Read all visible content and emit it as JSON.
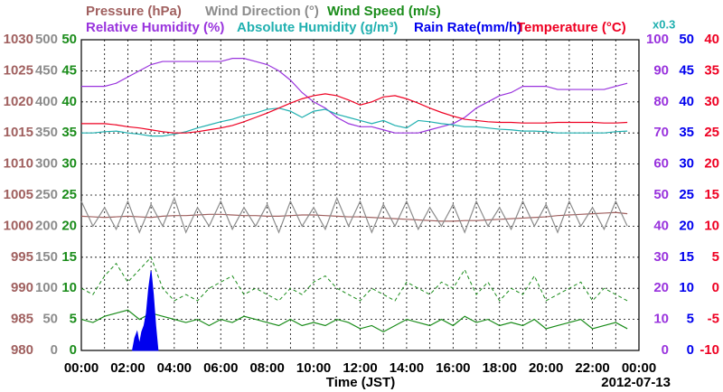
{
  "chart_data": {
    "type": "line",
    "x_label": "Time (JST)",
    "date_label": "2012-07-13",
    "scale_note": "x0.3",
    "xlim": [
      0,
      24
    ],
    "xticks": [
      {
        "value": 0,
        "label": "00:00"
      },
      {
        "value": 2,
        "label": "02:00"
      },
      {
        "value": 4,
        "label": "04:00"
      },
      {
        "value": 6,
        "label": "06:00"
      },
      {
        "value": 8,
        "label": "08:00"
      },
      {
        "value": 10,
        "label": "10:00"
      },
      {
        "value": 12,
        "label": "12:00"
      },
      {
        "value": 14,
        "label": "14:00"
      },
      {
        "value": 16,
        "label": "16:00"
      },
      {
        "value": 18,
        "label": "18:00"
      },
      {
        "value": 20,
        "label": "20:00"
      },
      {
        "value": 22,
        "label": "22:00"
      },
      {
        "value": 24,
        "label": "00:00"
      }
    ],
    "xminorticks": [
      1,
      3,
      5,
      7,
      9,
      11,
      13,
      15,
      17,
      19,
      21,
      23
    ],
    "grid": true,
    "axes": [
      {
        "side": "left",
        "color": "#a0605f",
        "lim": [
          980,
          1030
        ],
        "ticks": [
          980,
          985,
          990,
          995,
          1000,
          1005,
          1010,
          1015,
          1020,
          1025,
          1030
        ]
      },
      {
        "side": "left",
        "color": "#8c8c8c",
        "lim": [
          0,
          500
        ],
        "ticks": [
          0,
          50,
          100,
          150,
          200,
          250,
          300,
          350,
          400,
          450,
          500
        ]
      },
      {
        "side": "left",
        "color": "#1a8c1a",
        "lim": [
          0,
          50
        ],
        "ticks": [
          0,
          5,
          10,
          15,
          20,
          25,
          30,
          35,
          40,
          45,
          50
        ]
      },
      {
        "side": "right",
        "color": "#9933dd",
        "lim": [
          0,
          100
        ],
        "ticks": [
          0,
          10,
          20,
          30,
          40,
          50,
          60,
          70,
          80,
          90,
          100
        ]
      },
      {
        "side": "right",
        "color": "#0000ee",
        "lim": [
          0,
          50
        ],
        "ticks": [
          0,
          5,
          10,
          15,
          20,
          25,
          30,
          35,
          40,
          45,
          50
        ]
      },
      {
        "side": "right",
        "color": "#ee0022",
        "lim": [
          -10,
          40
        ],
        "ticks": [
          -10,
          -5,
          0,
          5,
          10,
          15,
          20,
          25,
          30,
          35,
          40
        ]
      }
    ],
    "x": [
      0,
      0.5,
      1,
      1.5,
      2,
      2.5,
      3,
      3.5,
      4,
      4.5,
      5,
      5.5,
      6,
      6.5,
      7,
      7.5,
      8,
      8.5,
      9,
      9.5,
      10,
      10.5,
      11,
      11.5,
      12,
      12.5,
      13,
      13.5,
      14,
      14.5,
      15,
      15.5,
      16,
      16.5,
      17,
      17.5,
      18,
      18.5,
      19,
      19.5,
      20,
      20.5,
      21,
      21.5,
      22,
      22.5,
      23,
      23.5
    ],
    "series": [
      {
        "name": "Pressure (hPa)",
        "color": "#a0605f",
        "axis": 0,
        "values": [
          1001.6,
          1001.5,
          1001.4,
          1001.5,
          1001.6,
          1001.5,
          1001.4,
          1001.6,
          1001.7,
          1001.7,
          1001.8,
          1001.9,
          1001.9,
          1001.8,
          1001.7,
          1001.7,
          1001.6,
          1001.6,
          1001.7,
          1001.8,
          1001.8,
          1001.7,
          1001.6,
          1001.5,
          1001.5,
          1001.4,
          1001.3,
          1001.2,
          1001.1,
          1001.0,
          1000.9,
          1000.8,
          1000.8,
          1000.9,
          1000.9,
          1001.0,
          1001.1,
          1001.2,
          1001.3,
          1001.4,
          1001.5,
          1001.7,
          1001.8,
          1001.9,
          1002.0,
          1002.1,
          1002.2,
          1002.0
        ]
      },
      {
        "name": "Wind Direction (°)",
        "color": "#8c8c8c",
        "axis": 1,
        "values": [
          240,
          200,
          230,
          195,
          240,
          190,
          235,
          200,
          245,
          190,
          230,
          200,
          240,
          195,
          230,
          200,
          235,
          190,
          240,
          200,
          230,
          195,
          245,
          200,
          240,
          190,
          235,
          200,
          240,
          195,
          230,
          200,
          235,
          190,
          240,
          200,
          230,
          195,
          240,
          200,
          235,
          190,
          240,
          200,
          230,
          195,
          240,
          200
        ]
      },
      {
        "name": "Wind Speed (m/s)",
        "color": "#1a8c1a",
        "axis": 2,
        "values": [
          5,
          4.5,
          5.5,
          6,
          6.5,
          5,
          6,
          5.5,
          5,
          4.5,
          5,
          4,
          5,
          4.5,
          5.5,
          5,
          4.5,
          4,
          5,
          4,
          4.5,
          4,
          5,
          4.5,
          3.5,
          4,
          3,
          4,
          5,
          4.5,
          4,
          5,
          4,
          5.5,
          4.5,
          5,
          4,
          4.5,
          4,
          5,
          3.5,
          4,
          4.5,
          5,
          3.5,
          4,
          4.5,
          3.5
        ],
        "peak_values": [
          10,
          9,
          12,
          14,
          11,
          13,
          15,
          10,
          8,
          9,
          8,
          10,
          11,
          12,
          9,
          10,
          9,
          8,
          10,
          9,
          11,
          12,
          10,
          9,
          8,
          10,
          9,
          8,
          11,
          10,
          9,
          11,
          10,
          13,
          9,
          11,
          8,
          10,
          9,
          12,
          8,
          9,
          10,
          11,
          8,
          10,
          9,
          8
        ]
      },
      {
        "name": "Relative Humidity (%)",
        "color": "#9933dd",
        "axis": 3,
        "values": [
          85,
          85,
          85,
          86,
          88,
          90,
          92,
          93,
          93,
          93,
          93,
          93,
          93,
          94,
          94,
          93,
          92,
          90,
          87,
          83,
          80,
          78,
          75,
          73,
          72,
          72,
          71,
          70,
          70,
          70,
          71,
          72,
          73,
          75,
          78,
          80,
          82,
          83,
          85,
          85,
          85,
          84,
          84,
          84,
          84,
          84,
          85,
          86
        ]
      },
      {
        "name": "Absolute Humidity (g/m³)",
        "color": "#20b0b0",
        "axis": 4,
        "values": [
          35,
          35,
          35.2,
          35.3,
          35,
          34.8,
          34.5,
          34.5,
          34.8,
          35.2,
          35.8,
          36.3,
          36.8,
          37.2,
          37.8,
          38.2,
          38.8,
          39,
          38.5,
          37.5,
          38.5,
          38.8,
          38,
          37.5,
          37,
          36.5,
          37,
          36.2,
          35.8,
          37,
          36.8,
          36.5,
          36.3,
          36,
          36,
          35.8,
          35.6,
          35.5,
          35.3,
          35.3,
          35.2,
          35,
          35,
          35,
          35,
          35,
          35.2,
          35.3
        ]
      },
      {
        "name": "Rain Rate(mm/h)",
        "color": "#0000ee",
        "axis": 4,
        "area": true,
        "x": [
          2.2,
          2.3,
          2.4,
          2.5,
          2.6,
          2.7,
          2.8,
          2.9,
          3.0,
          3.1,
          3.2,
          3.3
        ],
        "values": [
          0,
          2,
          3,
          1,
          3,
          4,
          6,
          10,
          12.8,
          9,
          4,
          0
        ]
      },
      {
        "name": "Temperature (°C)",
        "color": "#ee0022",
        "axis": 5,
        "values": [
          26.5,
          26.5,
          26.5,
          26.3,
          26,
          25.8,
          25.5,
          25.2,
          25,
          25,
          25.2,
          25.5,
          25.8,
          26.2,
          26.8,
          27.5,
          28.2,
          29,
          29.8,
          30.5,
          31,
          31.3,
          31,
          30.3,
          29.5,
          30,
          30.8,
          31,
          30.5,
          29.8,
          29,
          28.3,
          27.7,
          27.2,
          27,
          26.8,
          26.7,
          26.7,
          26.6,
          26.6,
          26.6,
          26.7,
          26.7,
          26.7,
          26.7,
          26.6,
          26.6,
          26.7
        ]
      }
    ]
  }
}
